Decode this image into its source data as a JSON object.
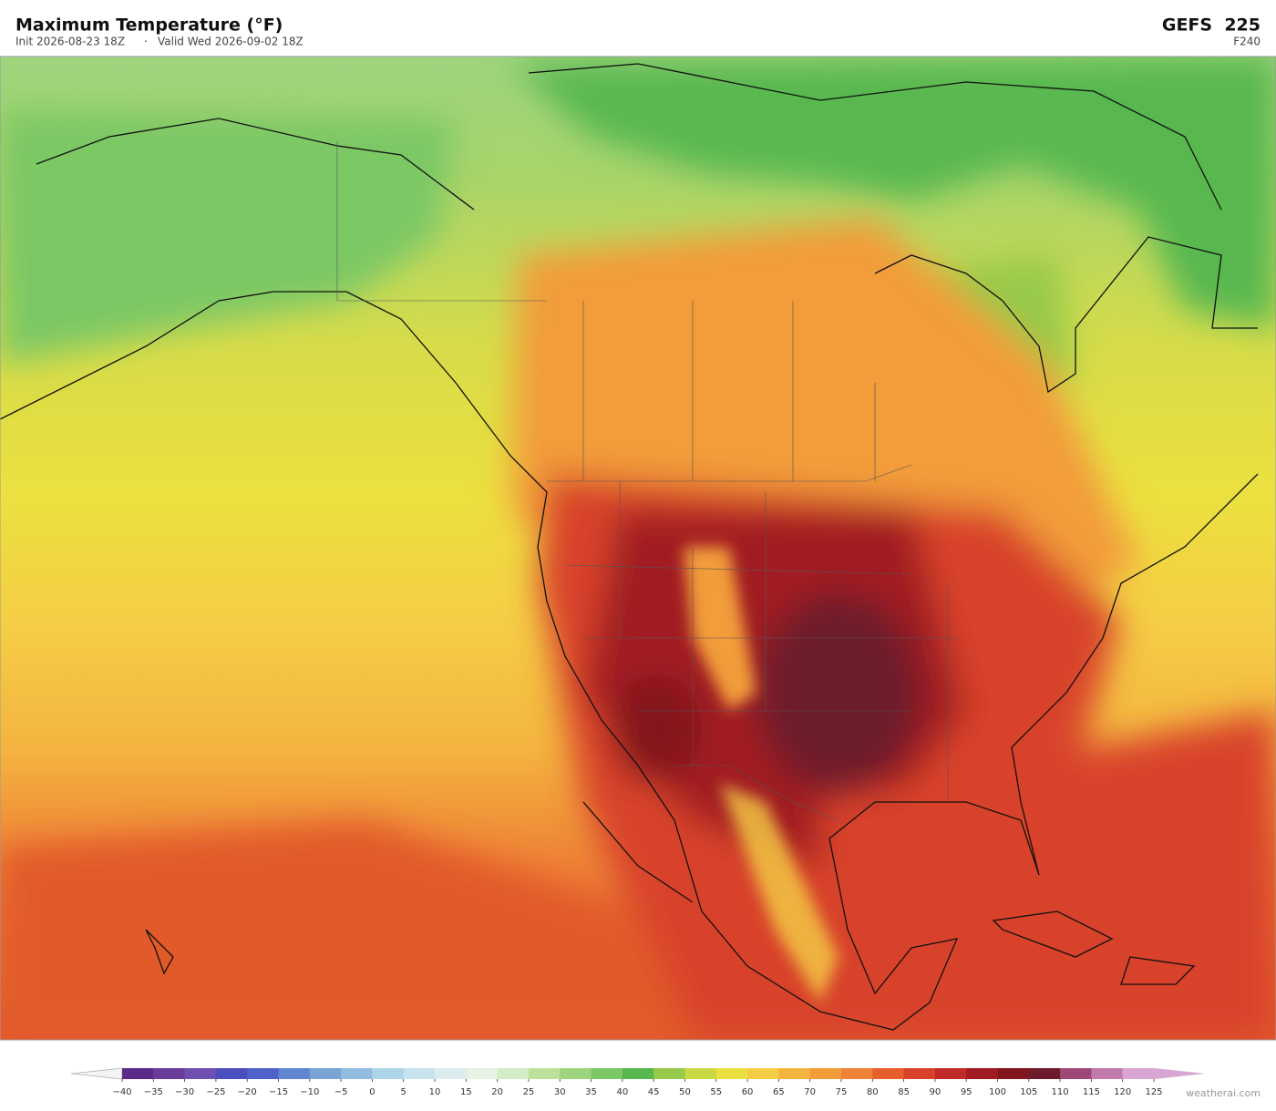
{
  "header": {
    "title": "Maximum Temperature  (°F)",
    "init": "Init 2026-08-23 18Z",
    "separator": "·",
    "valid": "Valid Wed 2026-09-02 18Z",
    "model": "GEFS  225",
    "forecast_hour": "F240"
  },
  "colorbar": {
    "ticks": [
      {
        "value": -40,
        "label": "−40"
      },
      {
        "value": -35,
        "label": "−35"
      },
      {
        "value": -30,
        "label": "−30"
      },
      {
        "value": -25,
        "label": "−25"
      },
      {
        "value": -20,
        "label": "−20"
      },
      {
        "value": -15,
        "label": "−15"
      },
      {
        "value": -10,
        "label": "−10"
      },
      {
        "value": -5,
        "label": "−5"
      },
      0,
      5,
      10,
      15,
      20,
      25,
      30,
      35,
      40,
      45,
      50,
      55,
      60,
      65,
      70,
      75,
      80,
      85,
      90,
      95,
      100,
      105,
      110,
      115,
      120,
      125
    ],
    "colors": [
      "#5b2a86",
      "#6a3d9a",
      "#6f4fb0",
      "#4b4ebf",
      "#4f62c9",
      "#6186d0",
      "#7aa3d6",
      "#93bde0",
      "#aed4ea",
      "#c6e3ee",
      "#dcecef",
      "#e6f2e4",
      "#d4ebc8",
      "#bde09a",
      "#9fd47e",
      "#7cc865",
      "#58b84f",
      "#97c94a",
      "#c9d843",
      "#ece040",
      "#f5cd45",
      "#f4b540",
      "#f29c3a",
      "#ee8236",
      "#e85f2e",
      "#d8422a",
      "#c12b27",
      "#a11c22",
      "#83151f",
      "#6d1a2a",
      "#9e4877",
      "#c07aac",
      "#d9a5d2"
    ]
  },
  "footer": {
    "credit": "weatherai.com"
  }
}
